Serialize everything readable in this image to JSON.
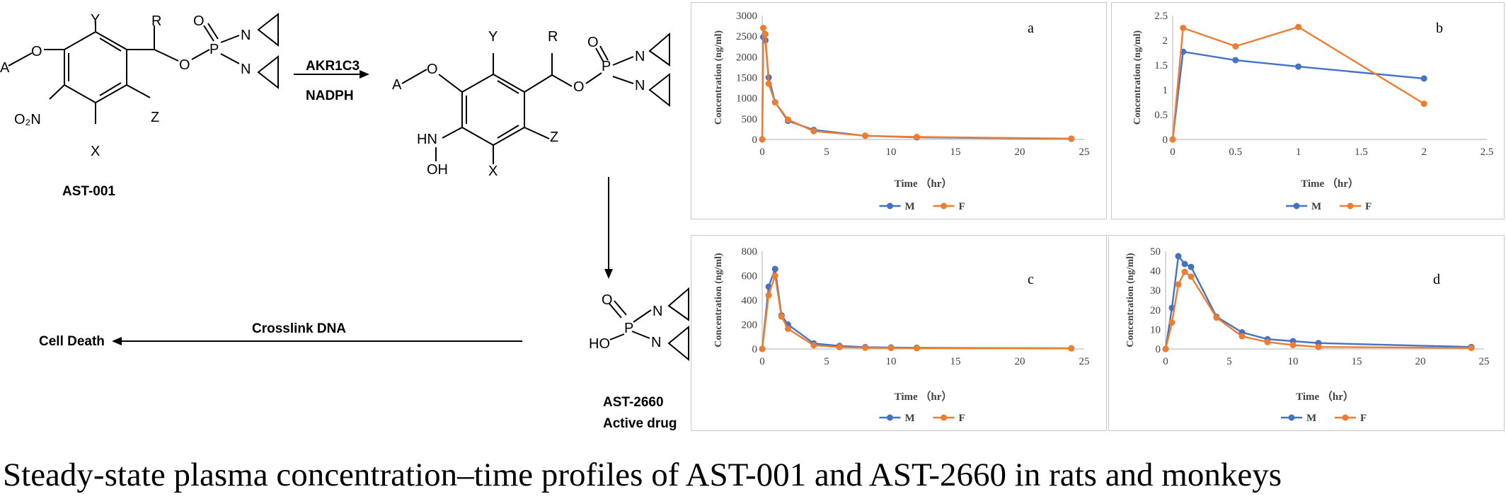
{
  "caption": "Steady-state plasma concentration–time profiles of AST-001 and AST-2660 in rats and monkeys",
  "scheme": {
    "compound1": "AST-001",
    "reagent1": "AKR1C3",
    "reagent2": "NADPH",
    "compound3_line1": "AST-2660",
    "compound3_line2": "Active drug",
    "crosslink": "Crosslink DNA",
    "outcome": "Cell Death",
    "atoms": {
      "A": "A",
      "Y": "Y",
      "R": "R",
      "Z": "Z",
      "X": "X",
      "O": "O",
      "P": "P",
      "N": "N",
      "NO2": "O₂N",
      "HN": "HN",
      "OH": "OH",
      "HO": "HO"
    }
  },
  "colors": {
    "M": "#4472C4",
    "F": "#ED7D31",
    "grid_border": "#c8c8c8"
  },
  "chart_data": [
    {
      "type": "line",
      "panel_label": "a",
      "xlabel": "Time （hr）",
      "ylabel": "Concentration (ng/ml)",
      "xlim": [
        0,
        25
      ],
      "xticks": [
        0,
        5,
        10,
        15,
        20,
        25
      ],
      "ylim": [
        0,
        3000
      ],
      "yticks": [
        0,
        500,
        1000,
        1500,
        2000,
        2500,
        3000
      ],
      "legend": "bottom-center",
      "grid": false,
      "series": [
        {
          "name": "M",
          "x": [
            0,
            0.08,
            0.25,
            0.5,
            1,
            2,
            4,
            8,
            12,
            24
          ],
          "y": [
            0,
            2480,
            2400,
            1500,
            900,
            450,
            230,
            90,
            50,
            15
          ]
        },
        {
          "name": "F",
          "x": [
            0,
            0.08,
            0.25,
            0.5,
            1,
            2,
            4,
            8,
            12,
            24
          ],
          "y": [
            0,
            2700,
            2550,
            1350,
            900,
            480,
            200,
            90,
            60,
            20
          ]
        }
      ]
    },
    {
      "type": "line",
      "panel_label": "b",
      "xlabel": "Time （hr）",
      "ylabel": "Concentration (ng/ml)",
      "xlim": [
        0,
        2.5
      ],
      "xticks": [
        0,
        0.5,
        1,
        1.5,
        2,
        2.5
      ],
      "ylim": [
        0,
        2.5
      ],
      "yticks": [
        0,
        0.5,
        1,
        1.5,
        2,
        2.5
      ],
      "legend": "bottom-center",
      "grid": false,
      "series": [
        {
          "name": "M",
          "x": [
            0,
            0.083,
            0.5,
            1,
            2
          ],
          "y": [
            0,
            1.77,
            1.6,
            1.47,
            1.23
          ]
        },
        {
          "name": "F",
          "x": [
            0,
            0.083,
            0.5,
            1,
            2
          ],
          "y": [
            0,
            2.25,
            1.88,
            2.27,
            0.72
          ]
        }
      ]
    },
    {
      "type": "line",
      "panel_label": "c",
      "xlabel": "Time （hr）",
      "ylabel": "Concentration (ng/ml)",
      "xlim": [
        0,
        25
      ],
      "xticks": [
        0,
        5,
        10,
        15,
        20,
        25
      ],
      "ylim": [
        0,
        800
      ],
      "yticks": [
        0,
        200,
        400,
        600,
        800
      ],
      "legend": "bottom-center",
      "grid": false,
      "series": [
        {
          "name": "M",
          "x": [
            0,
            0.5,
            1,
            1.5,
            2,
            4,
            6,
            8,
            10,
            12,
            24
          ],
          "y": [
            0,
            510,
            655,
            275,
            200,
            45,
            25,
            15,
            12,
            10,
            5
          ]
        },
        {
          "name": "F",
          "x": [
            0,
            0.5,
            1,
            1.5,
            2,
            4,
            6,
            8,
            10,
            12,
            24
          ],
          "y": [
            0,
            440,
            600,
            265,
            165,
            30,
            15,
            10,
            8,
            7,
            5
          ]
        }
      ]
    },
    {
      "type": "line",
      "panel_label": "d",
      "xlabel": "Time （hr）",
      "ylabel": "Concentration (ng/ml)",
      "xlim": [
        0,
        25
      ],
      "xticks": [
        0,
        5,
        10,
        15,
        20,
        25
      ],
      "ylim": [
        0,
        50
      ],
      "yticks": [
        0,
        10,
        20,
        30,
        40,
        50
      ],
      "legend": "bottom-center",
      "grid": false,
      "series": [
        {
          "name": "M",
          "x": [
            0,
            0.5,
            1,
            1.5,
            2,
            4,
            6,
            8,
            10,
            12,
            24
          ],
          "y": [
            0,
            21,
            47.5,
            43.5,
            42,
            16.5,
            8.5,
            5,
            4,
            3,
            1
          ]
        },
        {
          "name": "F",
          "x": [
            0,
            0.5,
            1,
            1.5,
            2,
            4,
            6,
            8,
            10,
            12,
            24
          ],
          "y": [
            0,
            13.5,
            33,
            39.5,
            37,
            16,
            6.5,
            3.5,
            2,
            1,
            0.5
          ]
        }
      ]
    }
  ]
}
